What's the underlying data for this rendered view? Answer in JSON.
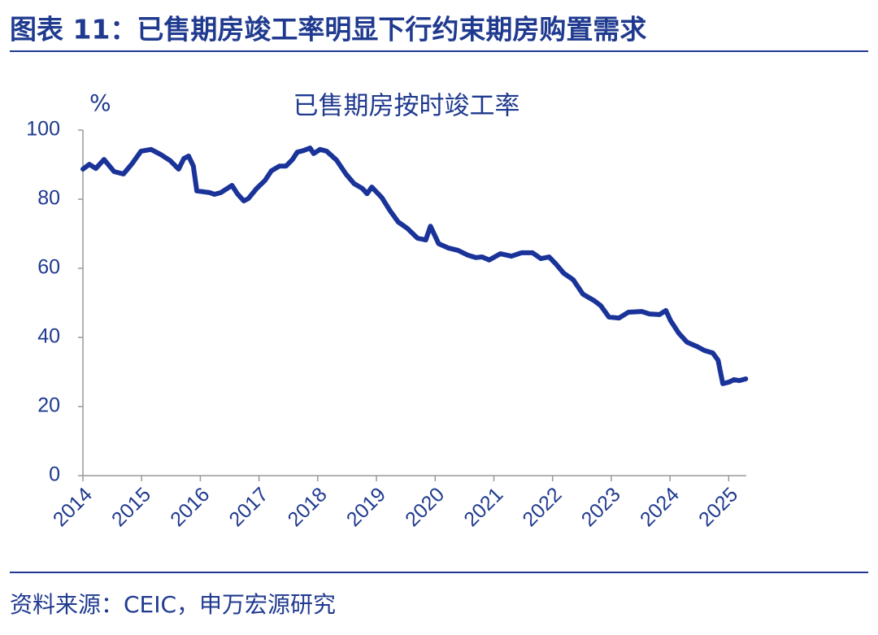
{
  "header": {
    "title": "图表 11：已售期房竣工率明显下行约束期房购置需求"
  },
  "source": "资料来源：CEIC，申万宏源研究",
  "chart_data": {
    "type": "line",
    "title": "已售期房按时竣工率",
    "y_label": "%",
    "x": [
      2014.0,
      2014.11,
      2014.22,
      2014.36,
      2014.53,
      2014.69,
      2014.83,
      2014.99,
      2015.16,
      2015.33,
      2015.49,
      2015.63,
      2015.72,
      2015.8,
      2015.88,
      2015.94,
      2016.16,
      2016.24,
      2016.35,
      2016.54,
      2016.63,
      2016.74,
      2016.82,
      2016.96,
      2017.1,
      2017.21,
      2017.35,
      2017.46,
      2017.57,
      2017.65,
      2017.76,
      2017.87,
      2017.93,
      2018.04,
      2018.15,
      2018.32,
      2018.48,
      2018.62,
      2018.76,
      2018.84,
      2018.92,
      2019.09,
      2019.23,
      2019.37,
      2019.53,
      2019.7,
      2019.84,
      2019.92,
      2020.06,
      2020.22,
      2020.39,
      2020.56,
      2020.69,
      2020.8,
      2020.92,
      2021.11,
      2021.3,
      2021.47,
      2021.66,
      2021.8,
      2021.94,
      2022.05,
      2022.19,
      2022.35,
      2022.52,
      2022.71,
      2022.82,
      2022.96,
      2023.13,
      2023.29,
      2023.52,
      2023.65,
      2023.82,
      2023.93,
      2024.01,
      2024.15,
      2024.29,
      2024.46,
      2024.59,
      2024.73,
      2024.82,
      2024.9,
      2025.01,
      2025.09,
      2025.18,
      2025.29
    ],
    "series": [
      {
        "name": "已售期房按时竣工率",
        "color": "#1a3399",
        "values": [
          88.7,
          90.1,
          88.9,
          91.5,
          88.0,
          87.3,
          90.1,
          93.9,
          94.4,
          92.9,
          91.1,
          88.7,
          91.8,
          92.5,
          89.6,
          82.4,
          81.9,
          81.4,
          81.9,
          84.0,
          81.6,
          79.5,
          80.2,
          83.1,
          85.4,
          88.2,
          89.6,
          89.6,
          91.5,
          93.6,
          94.1,
          94.8,
          93.2,
          94.4,
          93.9,
          91.3,
          87.3,
          84.5,
          83.1,
          81.6,
          83.5,
          80.5,
          76.7,
          73.4,
          71.5,
          68.7,
          68.2,
          72.2,
          67.1,
          65.9,
          65.2,
          63.8,
          63.1,
          63.3,
          62.4,
          64.2,
          63.5,
          64.5,
          64.5,
          62.8,
          63.3,
          61.4,
          58.6,
          56.7,
          52.5,
          50.6,
          49.2,
          45.9,
          45.6,
          47.3,
          47.5,
          46.8,
          46.6,
          47.8,
          44.9,
          41.2,
          38.6,
          37.4,
          36.2,
          35.5,
          33.4,
          26.6,
          27.1,
          27.8,
          27.5,
          28.0
        ]
      }
    ],
    "xlim": [
      2014,
      2025.3
    ],
    "xticks": [
      2014,
      2015,
      2016,
      2017,
      2018,
      2019,
      2020,
      2021,
      2022,
      2023,
      2024,
      2025
    ],
    "ylim": [
      0,
      100
    ],
    "yticks": [
      0,
      20,
      40,
      60,
      80,
      100
    ],
    "grid": false
  }
}
